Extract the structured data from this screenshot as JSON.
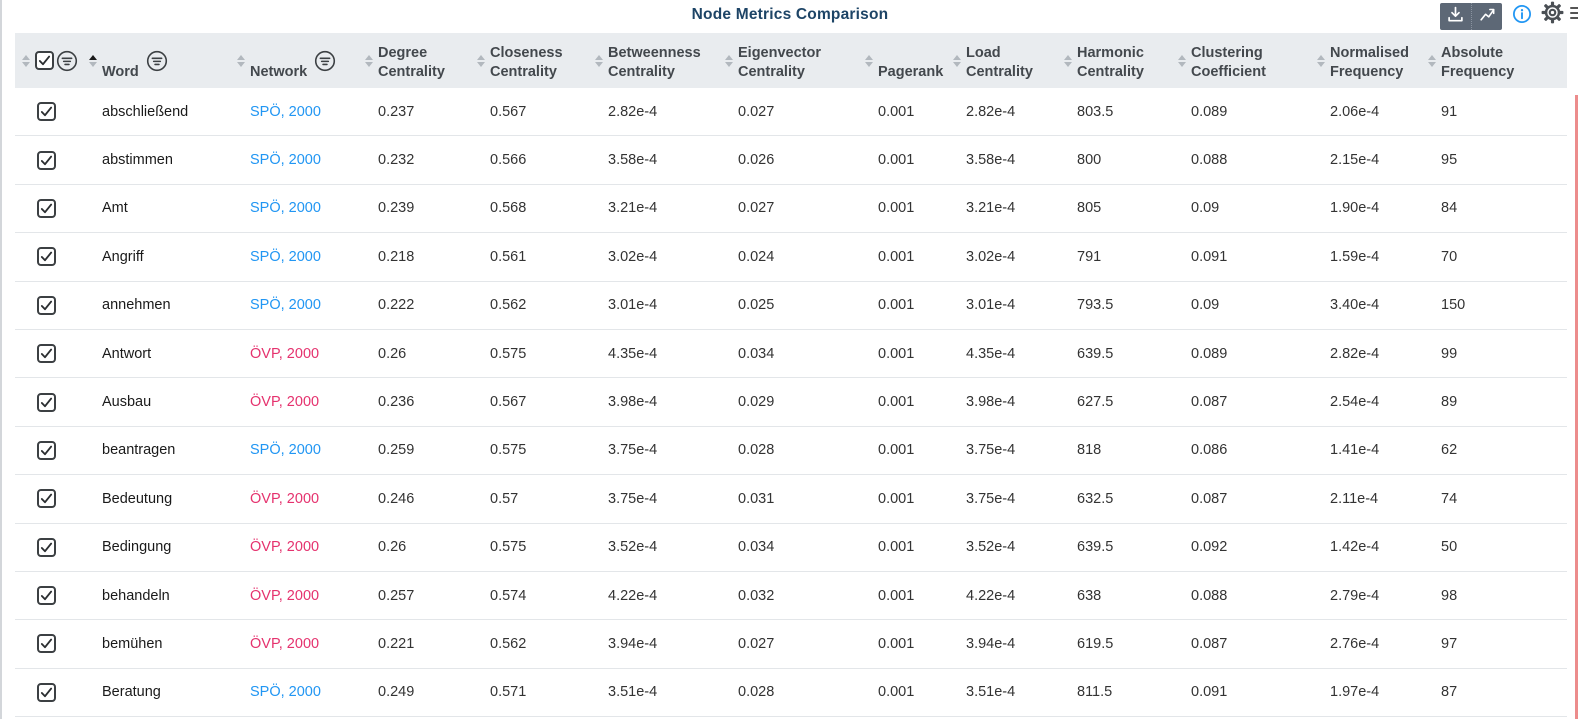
{
  "title": "Node Metrics Comparison",
  "toolbar": {
    "icons": [
      "download-icon",
      "trend-chart-icon",
      "info-icon",
      "settings-gear-icon",
      "menu-icon"
    ]
  },
  "colors": {
    "title": "#1d4466",
    "header_bg": "#e9ecef",
    "modebar_bg": "#5d6876",
    "spo": "#2196f3",
    "ovp": "#e5326e",
    "info": "#2196f3"
  },
  "table": {
    "columns": [
      {
        "id": "select",
        "label": "",
        "sort": "none",
        "filter": true,
        "type": "checkbox"
      },
      {
        "id": "word",
        "label": "Word",
        "sort": "asc",
        "filter": true
      },
      {
        "id": "network",
        "label": "Network",
        "sort": "none",
        "filter": true
      },
      {
        "id": "degree",
        "label": "Degree Centrality",
        "sort": "none",
        "filter": false
      },
      {
        "id": "closeness",
        "label": "Closeness Centrality",
        "sort": "none",
        "filter": false
      },
      {
        "id": "betweenness",
        "label": "Betweenness Centrality",
        "sort": "none",
        "filter": false
      },
      {
        "id": "eigenvector",
        "label": "Eigenvector Centrality",
        "sort": "none",
        "filter": false
      },
      {
        "id": "pagerank",
        "label": "Pagerank",
        "sort": "none",
        "filter": false
      },
      {
        "id": "load",
        "label": "Load Centrality",
        "sort": "none",
        "filter": false
      },
      {
        "id": "harmonic",
        "label": "Harmonic Centrality",
        "sort": "none",
        "filter": false
      },
      {
        "id": "clustering",
        "label": "Clustering Coefficient",
        "sort": "none",
        "filter": false
      },
      {
        "id": "normalised",
        "label": "Normalised Frequency",
        "sort": "none",
        "filter": false
      },
      {
        "id": "absolute",
        "label": "Absolute Frequency",
        "sort": "none",
        "filter": false
      }
    ],
    "rows": [
      {
        "checked": true,
        "word": "abschließend",
        "network": "SPÖ, 2000",
        "party": "spo",
        "degree": "0.237",
        "closeness": "0.567",
        "betweenness": "2.82e-4",
        "eigenvector": "0.027",
        "pagerank": "0.001",
        "load": "2.82e-4",
        "harmonic": "803.5",
        "clustering": "0.089",
        "normalised": "2.06e-4",
        "absolute": "91"
      },
      {
        "checked": true,
        "word": "abstimmen",
        "network": "SPÖ, 2000",
        "party": "spo",
        "degree": "0.232",
        "closeness": "0.566",
        "betweenness": "3.58e-4",
        "eigenvector": "0.026",
        "pagerank": "0.001",
        "load": "3.58e-4",
        "harmonic": "800",
        "clustering": "0.088",
        "normalised": "2.15e-4",
        "absolute": "95"
      },
      {
        "checked": true,
        "word": "Amt",
        "network": "SPÖ, 2000",
        "party": "spo",
        "degree": "0.239",
        "closeness": "0.568",
        "betweenness": "3.21e-4",
        "eigenvector": "0.027",
        "pagerank": "0.001",
        "load": "3.21e-4",
        "harmonic": "805",
        "clustering": "0.09",
        "normalised": "1.90e-4",
        "absolute": "84"
      },
      {
        "checked": true,
        "word": "Angriff",
        "network": "SPÖ, 2000",
        "party": "spo",
        "degree": "0.218",
        "closeness": "0.561",
        "betweenness": "3.02e-4",
        "eigenvector": "0.024",
        "pagerank": "0.001",
        "load": "3.02e-4",
        "harmonic": "791",
        "clustering": "0.091",
        "normalised": "1.59e-4",
        "absolute": "70"
      },
      {
        "checked": true,
        "word": "annehmen",
        "network": "SPÖ, 2000",
        "party": "spo",
        "degree": "0.222",
        "closeness": "0.562",
        "betweenness": "3.01e-4",
        "eigenvector": "0.025",
        "pagerank": "0.001",
        "load": "3.01e-4",
        "harmonic": "793.5",
        "clustering": "0.09",
        "normalised": "3.40e-4",
        "absolute": "150"
      },
      {
        "checked": true,
        "word": "Antwort",
        "network": "ÖVP, 2000",
        "party": "ovp",
        "degree": "0.26",
        "closeness": "0.575",
        "betweenness": "4.35e-4",
        "eigenvector": "0.034",
        "pagerank": "0.001",
        "load": "4.35e-4",
        "harmonic": "639.5",
        "clustering": "0.089",
        "normalised": "2.82e-4",
        "absolute": "99"
      },
      {
        "checked": true,
        "word": "Ausbau",
        "network": "ÖVP, 2000",
        "party": "ovp",
        "degree": "0.236",
        "closeness": "0.567",
        "betweenness": "3.98e-4",
        "eigenvector": "0.029",
        "pagerank": "0.001",
        "load": "3.98e-4",
        "harmonic": "627.5",
        "clustering": "0.087",
        "normalised": "2.54e-4",
        "absolute": "89"
      },
      {
        "checked": true,
        "word": "beantragen",
        "network": "SPÖ, 2000",
        "party": "spo",
        "degree": "0.259",
        "closeness": "0.575",
        "betweenness": "3.75e-4",
        "eigenvector": "0.028",
        "pagerank": "0.001",
        "load": "3.75e-4",
        "harmonic": "818",
        "clustering": "0.086",
        "normalised": "1.41e-4",
        "absolute": "62"
      },
      {
        "checked": true,
        "word": "Bedeutung",
        "network": "ÖVP, 2000",
        "party": "ovp",
        "degree": "0.246",
        "closeness": "0.57",
        "betweenness": "3.75e-4",
        "eigenvector": "0.031",
        "pagerank": "0.001",
        "load": "3.75e-4",
        "harmonic": "632.5",
        "clustering": "0.087",
        "normalised": "2.11e-4",
        "absolute": "74"
      },
      {
        "checked": true,
        "word": "Bedingung",
        "network": "ÖVP, 2000",
        "party": "ovp",
        "degree": "0.26",
        "closeness": "0.575",
        "betweenness": "3.52e-4",
        "eigenvector": "0.034",
        "pagerank": "0.001",
        "load": "3.52e-4",
        "harmonic": "639.5",
        "clustering": "0.092",
        "normalised": "1.42e-4",
        "absolute": "50"
      },
      {
        "checked": true,
        "word": "behandeln",
        "network": "ÖVP, 2000",
        "party": "ovp",
        "degree": "0.257",
        "closeness": "0.574",
        "betweenness": "4.22e-4",
        "eigenvector": "0.032",
        "pagerank": "0.001",
        "load": "4.22e-4",
        "harmonic": "638",
        "clustering": "0.088",
        "normalised": "2.79e-4",
        "absolute": "98"
      },
      {
        "checked": true,
        "word": "bemühen",
        "network": "ÖVP, 2000",
        "party": "ovp",
        "degree": "0.221",
        "closeness": "0.562",
        "betweenness": "3.94e-4",
        "eigenvector": "0.027",
        "pagerank": "0.001",
        "load": "3.94e-4",
        "harmonic": "619.5",
        "clustering": "0.087",
        "normalised": "2.76e-4",
        "absolute": "97"
      },
      {
        "checked": true,
        "word": "Beratung",
        "network": "SPÖ, 2000",
        "party": "spo",
        "degree": "0.249",
        "closeness": "0.571",
        "betweenness": "3.51e-4",
        "eigenvector": "0.028",
        "pagerank": "0.001",
        "load": "3.51e-4",
        "harmonic": "811.5",
        "clustering": "0.091",
        "normalised": "1.97e-4",
        "absolute": "87"
      }
    ]
  }
}
